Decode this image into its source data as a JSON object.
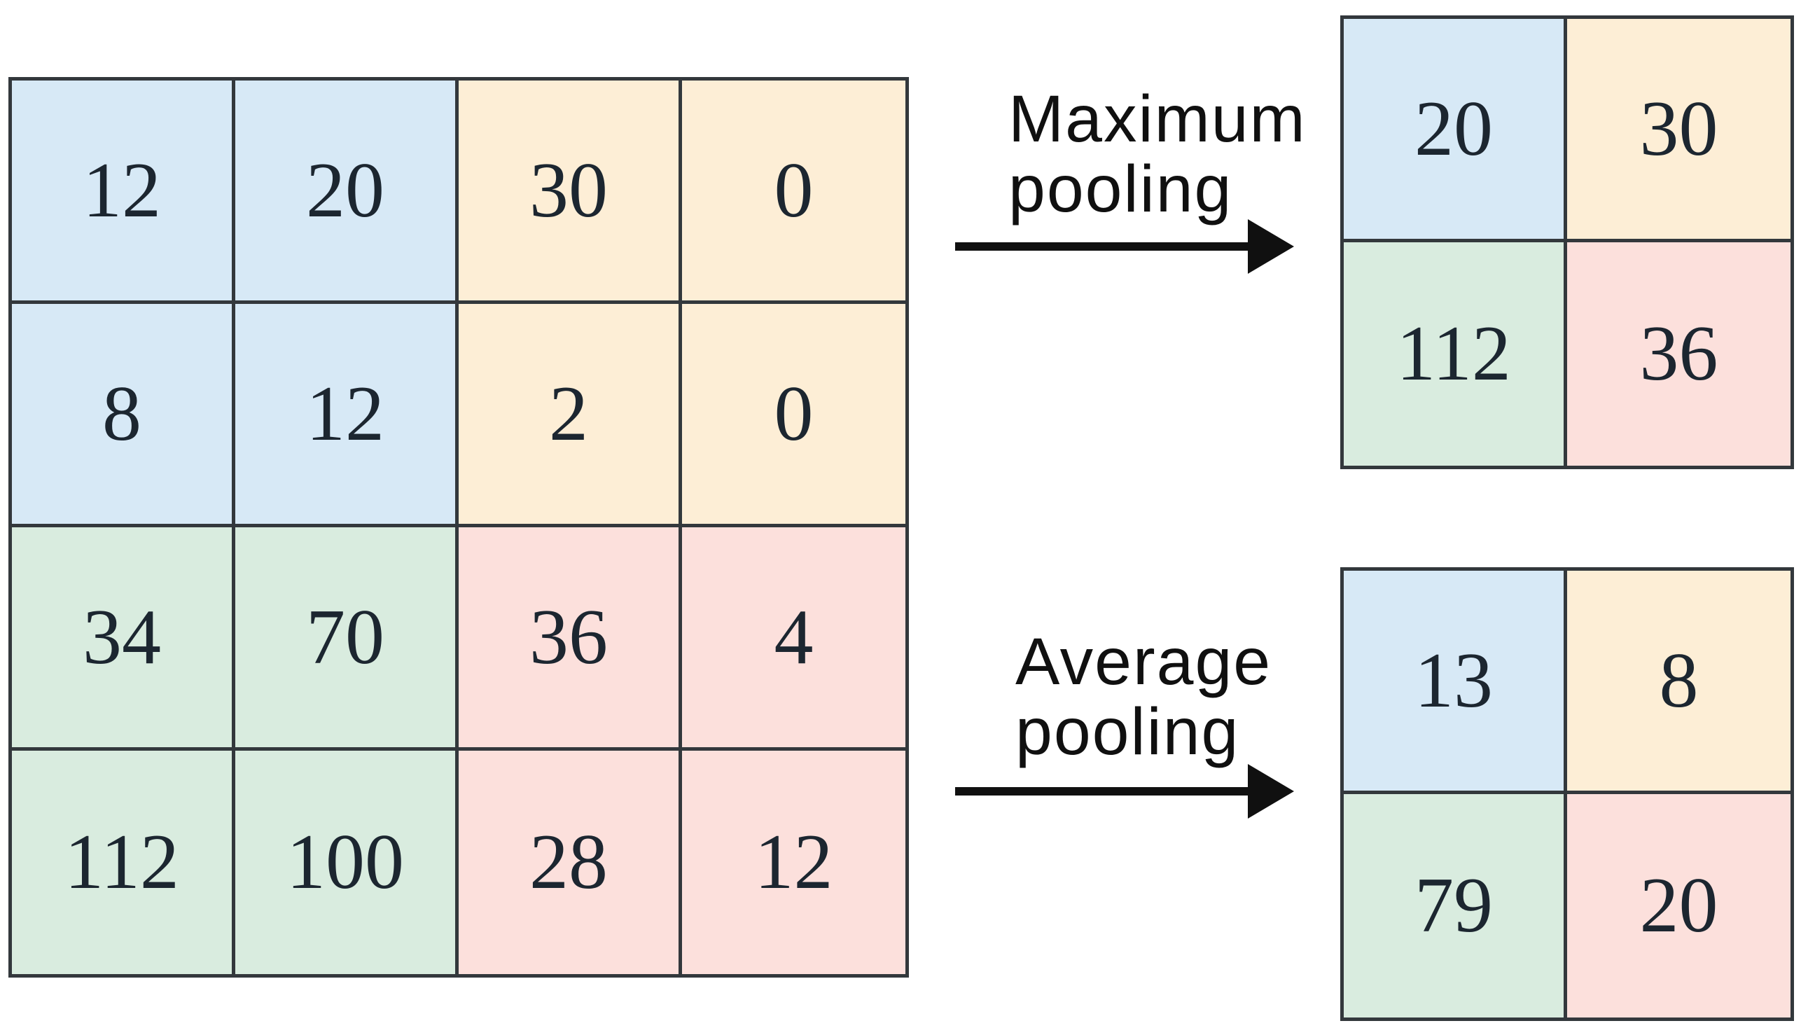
{
  "quadrant_colors": {
    "top_left": "#d7e9f6",
    "top_right": "#fdeed6",
    "bottom_left": "#d9ecdf",
    "bottom_right": "#fce0dc"
  },
  "input_matrix": {
    "rows": [
      [
        12,
        20,
        30,
        0
      ],
      [
        8,
        12,
        2,
        0
      ],
      [
        34,
        70,
        36,
        4
      ],
      [
        112,
        100,
        28,
        12
      ]
    ]
  },
  "max_pooling": {
    "label_line1": "Maximum",
    "label_line2": "pooling",
    "matrix": {
      "rows": [
        [
          20,
          30
        ],
        [
          112,
          36
        ]
      ]
    }
  },
  "average_pooling": {
    "label_line1": "Average",
    "label_line2": "pooling",
    "matrix": {
      "rows": [
        [
          13,
          8
        ],
        [
          79,
          20
        ]
      ]
    }
  }
}
